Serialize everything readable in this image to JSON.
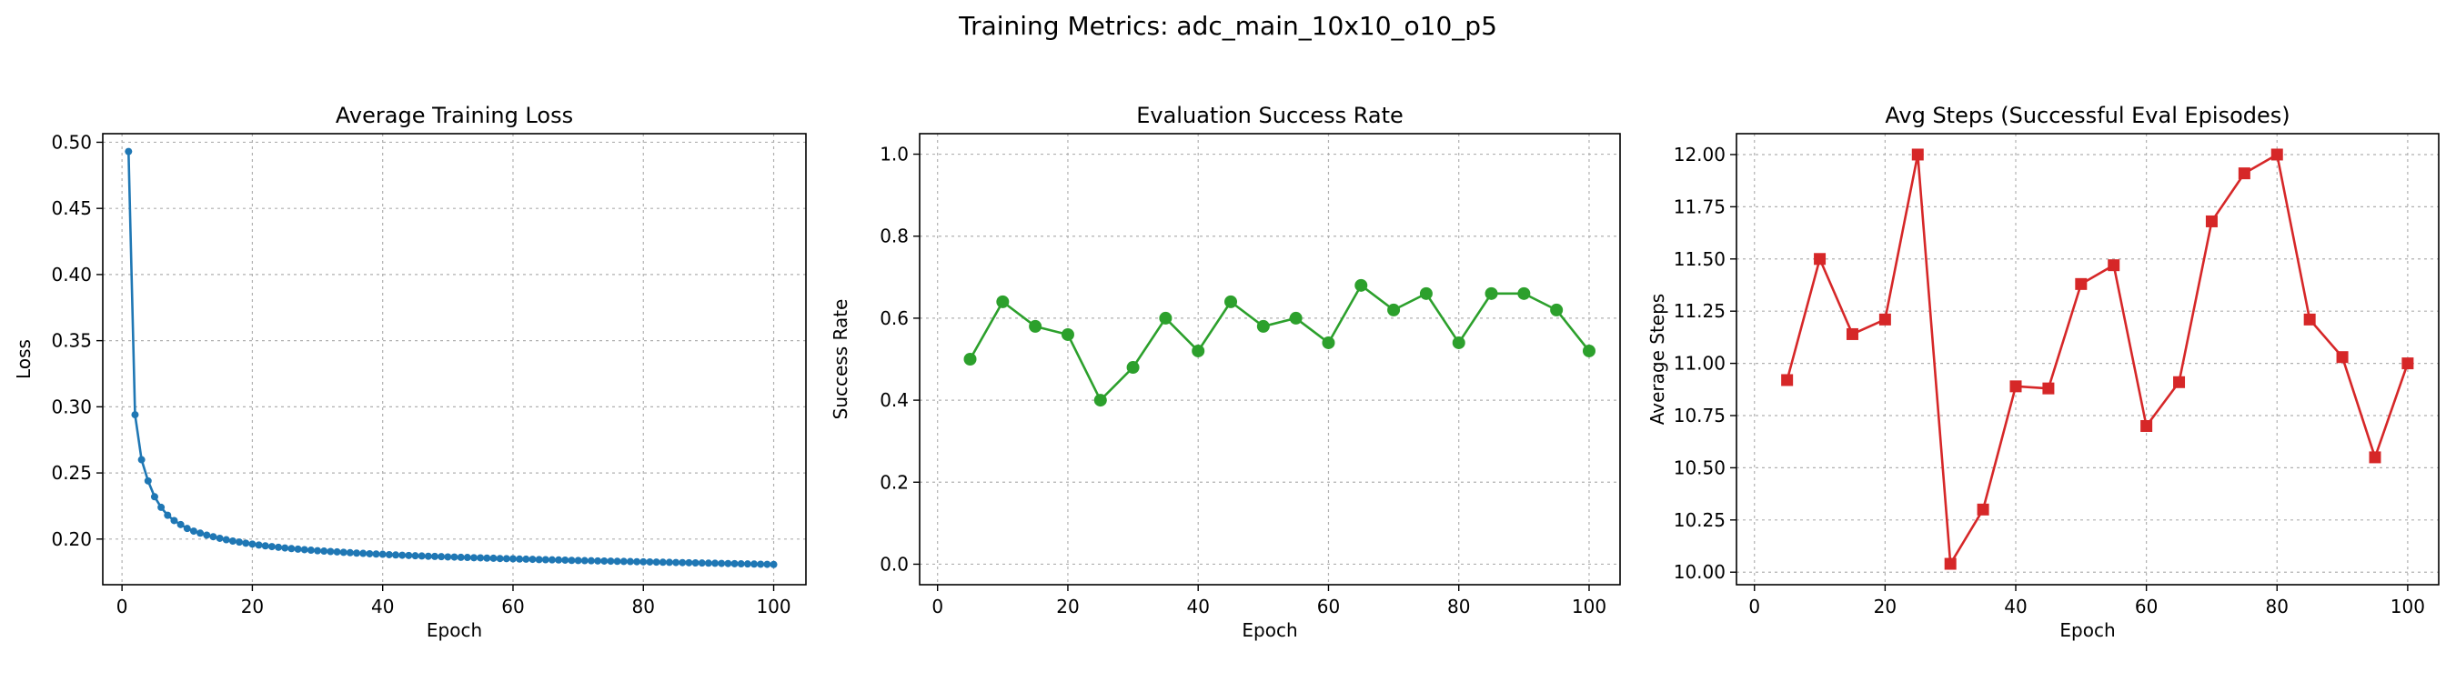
{
  "figure": {
    "title": "Training Metrics: adc_main_10x10_o10_p5"
  },
  "chart_data": [
    {
      "type": "line",
      "title": "Average Training Loss",
      "xlabel": "Epoch",
      "ylabel": "Loss",
      "xlim": [
        -2.95,
        104.95
      ],
      "ylim": [
        0.1655,
        0.5065
      ],
      "xticks": [
        0,
        20,
        40,
        60,
        80,
        100
      ],
      "yticks": [
        0.2,
        0.25,
        0.3,
        0.35,
        0.4,
        0.45,
        0.5
      ],
      "ytick_decimals": 2,
      "grid": true,
      "color": "#1f77b4",
      "marker": "circle",
      "x": [
        1,
        2,
        3,
        4,
        5,
        6,
        7,
        8,
        9,
        10,
        11,
        12,
        13,
        14,
        15,
        16,
        17,
        18,
        19,
        20,
        21,
        22,
        23,
        24,
        25,
        26,
        27,
        28,
        29,
        30,
        31,
        32,
        33,
        34,
        35,
        36,
        37,
        38,
        39,
        40,
        41,
        42,
        43,
        44,
        45,
        46,
        47,
        48,
        49,
        50,
        51,
        52,
        53,
        54,
        55,
        56,
        57,
        58,
        59,
        60,
        61,
        62,
        63,
        64,
        65,
        66,
        67,
        68,
        69,
        70,
        71,
        72,
        73,
        74,
        75,
        76,
        77,
        78,
        79,
        80,
        81,
        82,
        83,
        84,
        85,
        86,
        87,
        88,
        89,
        90,
        91,
        92,
        93,
        94,
        95,
        96,
        97,
        98,
        99,
        100
      ],
      "values": [
        0.493,
        0.294,
        0.26,
        0.244,
        0.232,
        0.224,
        0.218,
        0.214,
        0.211,
        0.208,
        0.206,
        0.2045,
        0.203,
        0.2018,
        0.2006,
        0.1995,
        0.1985,
        0.1977,
        0.1969,
        0.1962,
        0.1955,
        0.1949,
        0.1943,
        0.1938,
        0.1933,
        0.1928,
        0.1924,
        0.192,
        0.1916,
        0.1912,
        0.1909,
        0.1906,
        0.1903,
        0.19,
        0.1897,
        0.1894,
        0.1892,
        0.1889,
        0.1887,
        0.1885,
        0.1882,
        0.188,
        0.1878,
        0.1876,
        0.1874,
        0.1872,
        0.187,
        0.1869,
        0.1867,
        0.1865,
        0.1864,
        0.1862,
        0.1861,
        0.1859,
        0.1858,
        0.1856,
        0.1855,
        0.1853,
        0.1852,
        0.1851,
        0.1849,
        0.1848,
        0.1847,
        0.1845,
        0.1844,
        0.1843,
        0.1842,
        0.1841,
        0.1839,
        0.1838,
        0.1837,
        0.1836,
        0.1835,
        0.1834,
        0.1833,
        0.1832,
        0.1831,
        0.183,
        0.1829,
        0.1828,
        0.1827,
        0.1826,
        0.1825,
        0.1824,
        0.1823,
        0.1822,
        0.1821,
        0.182,
        0.1819,
        0.1818,
        0.1817,
        0.1816,
        0.1815,
        0.1814,
        0.1813,
        0.1812,
        0.1811,
        0.181,
        0.1809,
        0.1808
      ]
    },
    {
      "type": "line",
      "title": "Evaluation Success Rate",
      "xlabel": "Epoch",
      "ylabel": "Success Rate",
      "xlim": [
        -2.75,
        104.75
      ],
      "ylim": [
        -0.05,
        1.05
      ],
      "xticks": [
        0,
        20,
        40,
        60,
        80,
        100
      ],
      "yticks": [
        0.0,
        0.2,
        0.4,
        0.6,
        0.8,
        1.0
      ],
      "ytick_decimals": 1,
      "grid": true,
      "color": "#2ca02c",
      "marker": "circle",
      "x": [
        5,
        10,
        15,
        20,
        25,
        30,
        35,
        40,
        45,
        50,
        55,
        60,
        65,
        70,
        75,
        80,
        85,
        90,
        95,
        100
      ],
      "values": [
        0.5,
        0.64,
        0.58,
        0.56,
        0.4,
        0.48,
        0.6,
        0.52,
        0.64,
        0.58,
        0.6,
        0.54,
        0.68,
        0.62,
        0.66,
        0.54,
        0.66,
        0.66,
        0.62,
        0.52
      ]
    },
    {
      "type": "line",
      "title": "Avg Steps (Successful Eval Episodes)",
      "xlabel": "Epoch",
      "ylabel": "Average Steps",
      "xlim": [
        -2.75,
        104.75
      ],
      "ylim": [
        9.94,
        12.1
      ],
      "xticks": [
        0,
        20,
        40,
        60,
        80,
        100
      ],
      "yticks": [
        10.0,
        10.25,
        10.5,
        10.75,
        11.0,
        11.25,
        11.5,
        11.75,
        12.0
      ],
      "ytick_decimals": 2,
      "grid": true,
      "color": "#d62728",
      "marker": "square",
      "x": [
        5,
        10,
        15,
        20,
        25,
        30,
        35,
        40,
        45,
        50,
        55,
        60,
        65,
        70,
        75,
        80,
        85,
        90,
        95,
        100
      ],
      "values": [
        10.92,
        11.5,
        11.14,
        11.21,
        12.0,
        10.04,
        10.3,
        10.89,
        10.88,
        11.38,
        11.47,
        10.7,
        10.91,
        11.68,
        11.91,
        12.0,
        11.21,
        11.03,
        10.55,
        11.0
      ]
    }
  ]
}
